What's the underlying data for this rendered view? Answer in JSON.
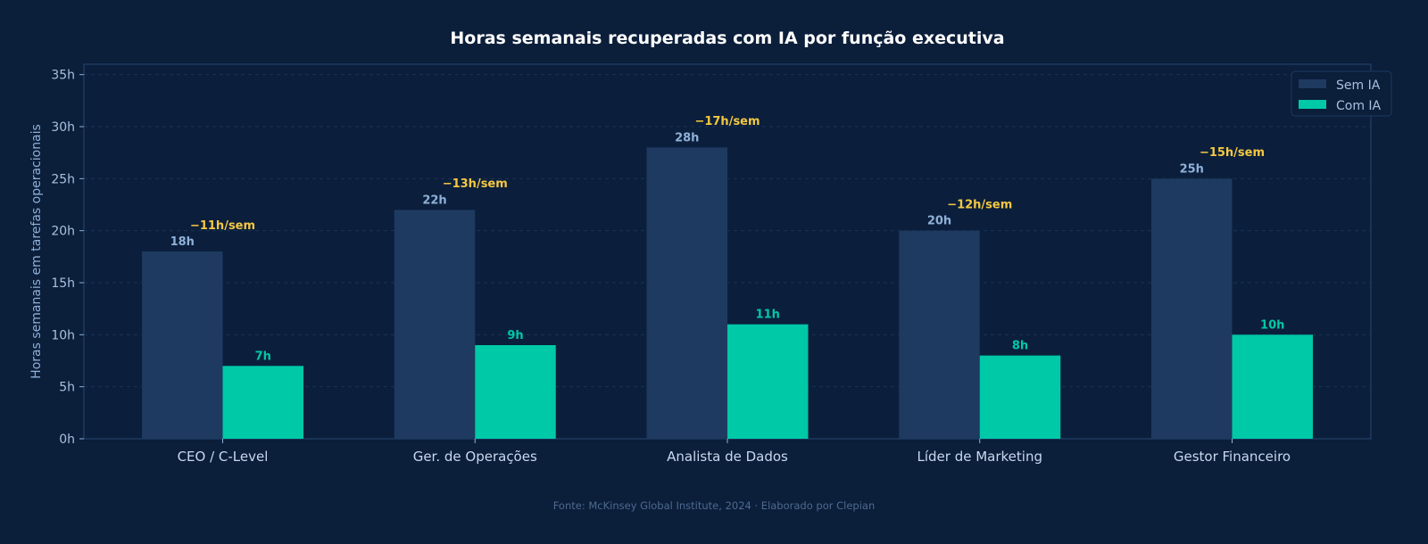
{
  "chart_data": {
    "type": "bar",
    "title": "Horas semanais recuperadas com IA por função executiva",
    "xlabel": "",
    "ylabel": "Horas semanais em tarefas operacionais",
    "categories": [
      "CEO / C-Level",
      "Ger. de Operações",
      "Analista de Dados",
      "Líder de Marketing",
      "Gestor Financeiro"
    ],
    "series": [
      {
        "name": "Sem IA",
        "values": [
          18,
          22,
          28,
          20,
          25
        ],
        "color": "#1e3a60",
        "label_color": "#8fb0d8"
      },
      {
        "name": "Com IA",
        "values": [
          7,
          9,
          11,
          8,
          10
        ],
        "color": "#00c9a7",
        "label_color": "#00c9a7"
      }
    ],
    "value_labels": {
      "Sem IA": [
        "18h",
        "22h",
        "28h",
        "20h",
        "25h"
      ],
      "Com IA": [
        "7h",
        "9h",
        "11h",
        "8h",
        "10h"
      ]
    },
    "annotations": [
      "−11h/sem",
      "−13h/sem",
      "−17h/sem",
      "−12h/sem",
      "−15h/sem"
    ],
    "annotation_color": "#f5c842",
    "yticks": [
      "0h",
      "5h",
      "10h",
      "15h",
      "20h",
      "25h",
      "30h",
      "35h"
    ],
    "ylim": [
      0,
      36
    ],
    "grid": true,
    "legend": "top-right",
    "background": "#0b1e3a"
  },
  "footer": "Fonte: McKinsey Global Institute, 2024 · Elaborado por Clepian"
}
